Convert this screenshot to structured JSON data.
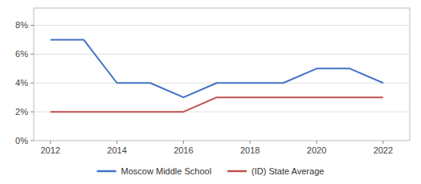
{
  "chart_data": {
    "type": "line",
    "x": [
      2012,
      2013,
      2014,
      2015,
      2016,
      2017,
      2018,
      2019,
      2020,
      2021,
      2022
    ],
    "series": [
      {
        "name": "Moscow Middle School",
        "color": "#4472C4",
        "values": [
          0.07,
          0.07,
          0.04,
          0.04,
          0.03,
          0.04,
          0.04,
          0.04,
          0.05,
          0.05,
          0.04
        ]
      },
      {
        "name": "(ID) State Average",
        "color": "#C0504D",
        "values": [
          0.02,
          0.02,
          0.02,
          0.02,
          0.02,
          0.03,
          0.03,
          0.03,
          0.03,
          0.03,
          0.03
        ]
      }
    ],
    "xlim": [
      2011.5,
      2022.8
    ],
    "ylim": [
      0.0,
      0.092
    ],
    "xticks": [
      2012,
      2014,
      2016,
      2018,
      2020,
      2022
    ],
    "yticks": [
      {
        "value": 0.0,
        "label": "0%"
      },
      {
        "value": 0.02,
        "label": "2%"
      },
      {
        "value": 0.04,
        "label": "4%"
      },
      {
        "value": 0.06,
        "label": "6%"
      },
      {
        "value": 0.08,
        "label": "8%"
      }
    ],
    "grid": true,
    "legend": "bottom"
  }
}
